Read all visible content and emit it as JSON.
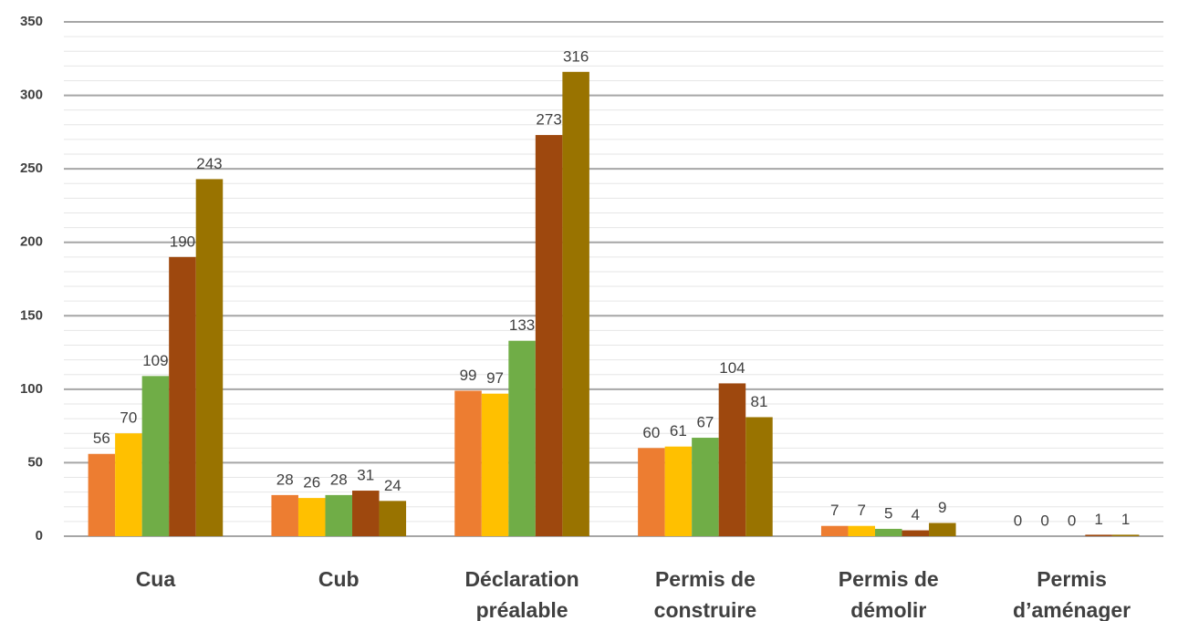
{
  "chart_data": {
    "type": "bar",
    "categories": [
      "Cua",
      "Cub",
      "Déclaration préalable",
      "Permis de construire",
      "Permis de démolir",
      "Permis d’aménager"
    ],
    "series": [
      {
        "color": "#ED7D31",
        "values": [
          56,
          28,
          99,
          60,
          7,
          0
        ]
      },
      {
        "color": "#FFC000",
        "values": [
          70,
          26,
          97,
          61,
          7,
          0
        ]
      },
      {
        "color": "#70AD47",
        "values": [
          109,
          28,
          133,
          67,
          5,
          0
        ]
      },
      {
        "color": "#9E480E",
        "values": [
          190,
          31,
          273,
          104,
          4,
          1
        ]
      },
      {
        "color": "#997300",
        "values": [
          243,
          24,
          316,
          81,
          9,
          1
        ]
      }
    ],
    "ylim": [
      0,
      350
    ],
    "yticks": [
      0,
      50,
      100,
      150,
      200,
      250,
      300,
      350
    ],
    "yminor_ticks": [
      10,
      20,
      30,
      40,
      60,
      70,
      80,
      90,
      110,
      120,
      130,
      140,
      160,
      170,
      180,
      190,
      210,
      220,
      230,
      240,
      260,
      270,
      280,
      290,
      310,
      320,
      330,
      340
    ],
    "grid": true,
    "data_labels": true
  }
}
